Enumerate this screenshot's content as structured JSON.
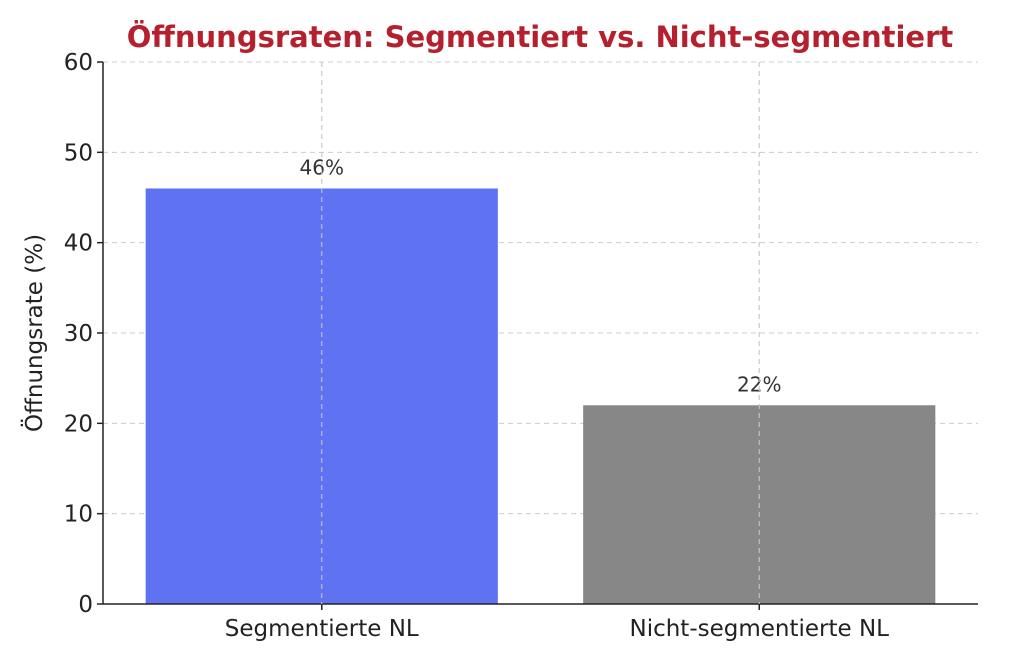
{
  "chart_data": {
    "type": "bar",
    "title": "Öffnungsraten: Segmentiert vs. Nicht-segmentiert",
    "xlabel": "",
    "ylabel": "Öffnungsrate (%)",
    "categories": [
      "Segmentierte NL",
      "Nicht-segmentierte NL"
    ],
    "values": [
      46,
      22
    ],
    "data_labels": [
      "46%",
      "22%"
    ],
    "ylim": [
      0,
      60
    ],
    "yticks": [
      0,
      10,
      20,
      30,
      40,
      50,
      60
    ],
    "grid": true,
    "colors": {
      "title": "#b5202e",
      "bars": [
        "#5f73f2",
        "#878787"
      ]
    }
  }
}
